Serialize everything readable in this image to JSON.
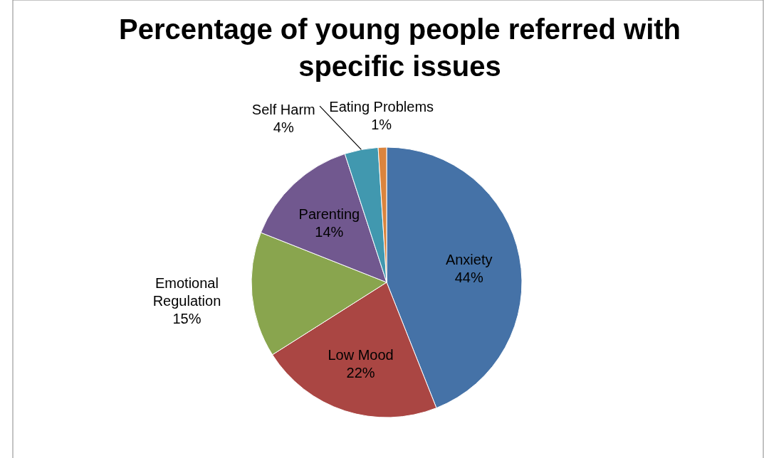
{
  "chart_data": {
    "type": "pie",
    "title": "Percentage of young people referred with specific issues",
    "categories": [
      "Anxiety",
      "Low Mood",
      "Emotional Regulation",
      "Parenting",
      "Self Harm",
      "Eating Problems"
    ],
    "values": [
      44,
      22,
      15,
      14,
      4,
      1
    ],
    "colors": [
      "#4572a7",
      "#aa4643",
      "#89a54e",
      "#71588f",
      "#4198af",
      "#db843d"
    ],
    "value_labels": [
      "44%",
      "22%",
      "15%",
      "14%",
      "4%",
      "1%"
    ]
  }
}
